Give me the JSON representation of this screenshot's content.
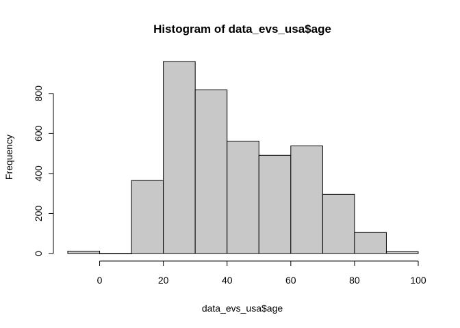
{
  "chart_data": {
    "type": "bar",
    "title": "Histogram of data_evs_usa$age",
    "xlabel": "data_evs_usa$age",
    "ylabel": "Frequency",
    "bins": [
      {
        "x0": -10,
        "x1": 0,
        "value": 12
      },
      {
        "x0": 0,
        "x1": 10,
        "value": 0
      },
      {
        "x0": 10,
        "x1": 20,
        "value": 365
      },
      {
        "x0": 20,
        "x1": 30,
        "value": 960
      },
      {
        "x0": 30,
        "x1": 40,
        "value": 818
      },
      {
        "x0": 40,
        "x1": 50,
        "value": 562
      },
      {
        "x0": 50,
        "x1": 60,
        "value": 491
      },
      {
        "x0": 60,
        "x1": 70,
        "value": 538
      },
      {
        "x0": 70,
        "x1": 80,
        "value": 296
      },
      {
        "x0": 80,
        "x1": 90,
        "value": 105
      },
      {
        "x0": 90,
        "x1": 100,
        "value": 9
      }
    ],
    "xticks": [
      0,
      20,
      40,
      60,
      80,
      100
    ],
    "yticks": [
      0,
      200,
      400,
      600,
      800
    ],
    "xlim": [
      -10,
      100
    ],
    "ylim": [
      0,
      960
    ],
    "grid": false,
    "bar_fill": "#c8c8c8",
    "bar_stroke": "#000000"
  }
}
